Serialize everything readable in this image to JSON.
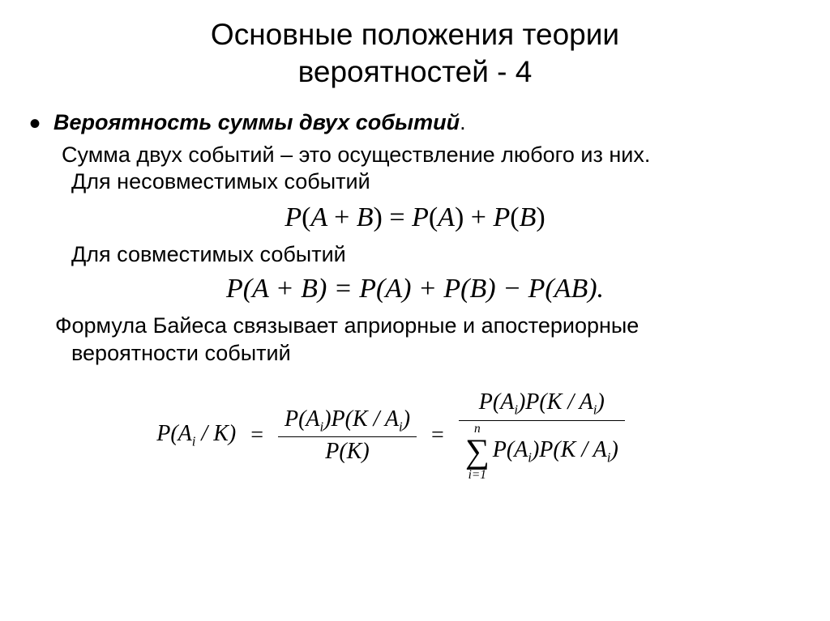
{
  "title_line1": "Основные положения теории",
  "title_line2": "вероятностей - 4",
  "heading": "Вероятность суммы двух событий",
  "heading_dot": ".",
  "desc": "Сумма двух событий – это осуществление  любого из них.",
  "incompat_label": "Для несовместимых событий",
  "formula1": "P(A + B) = P(A) + P(B)",
  "compat_label": "Для совместимых событий",
  "formula2": "P(A + B) = P(A) + P(B) − P(AB).",
  "bayes_text1": "Формула Байеса связывает априорные и апостериорные",
  "bayes_text2": "вероятности событий",
  "bayes": {
    "lhs": "P(A",
    "lhs_sub": "i",
    "lhs_rest": " / K)",
    "num1_a": "P(A",
    "num1_a_sub": "i",
    "num1_b": ")P(K / A",
    "num1_b_sub": "i",
    "num1_c": ")",
    "den1": "P(K)",
    "sum_top": "n",
    "sum_bot": "i=1",
    "den2_a": "P(A",
    "den2_a_sub": "i",
    "den2_b": ")P(K / A",
    "den2_b_sub": "i",
    "den2_c": ")"
  }
}
